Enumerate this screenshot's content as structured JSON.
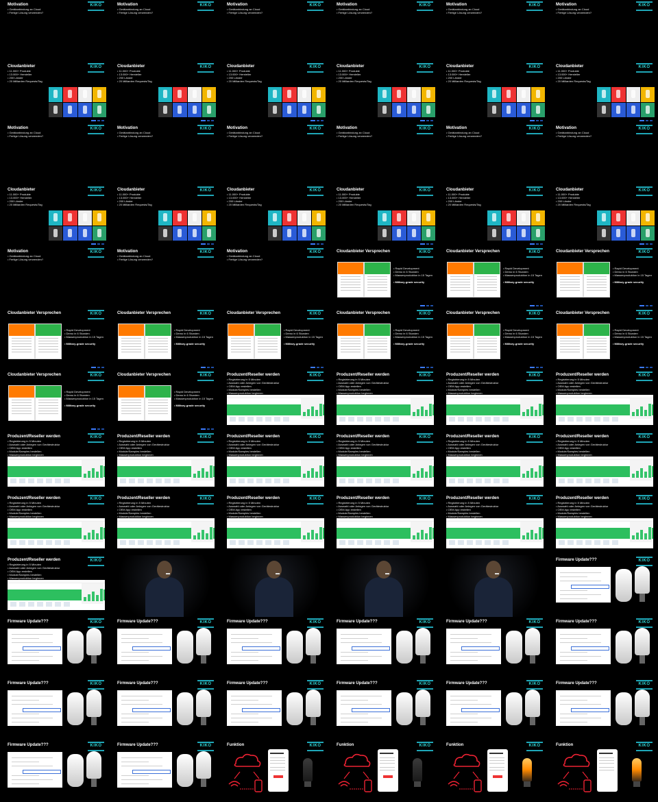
{
  "brand": {
    "logo_text": "KIKO",
    "accent": "#1fa7b8"
  },
  "slides": {
    "motivation": {
      "title": "Motivation",
      "bullets": [
        "• Gerätanbindung an Cloud",
        "• Fertige Lösung verwenden?"
      ]
    },
    "cloudanbieter": {
      "title": "Cloudanbieter",
      "bullets": [
        "• 11.000+ Produkte",
        "• 13.000+ Hersteller",
        "• 200 Länder",
        "• 20 Milliarden Requests/Tag"
      ]
    },
    "versprechen": {
      "title": "Cloudanbieter Versprechen",
      "bullets": [
        "• Rapid Development",
        "• Demo in 6 Stunden",
        "• Massenproduktion in 15 Tagen"
      ],
      "bold": "• Military-grade security"
    },
    "produzent": {
      "title": "Produzent/Reseller werden",
      "bullets": [
        "• Registrierung in 5 Minuten",
        "• Auswahl oder Anlegen von Gerätestruktur",
        "• OEM App erstellen",
        "• Module/Samples bestellen",
        "• Massenproduktion beginnen"
      ]
    },
    "firmware": {
      "title": "Firmware Update???"
    },
    "funktion": {
      "title": "Funktion"
    }
  },
  "layout_sequence": [
    "motivation",
    "motivation",
    "motivation",
    "motivation",
    "motivation",
    "motivation",
    "cloudanbieter",
    "cloudanbieter",
    "cloudanbieter",
    "cloudanbieter",
    "cloudanbieter",
    "cloudanbieter",
    "motivation",
    "motivation",
    "motivation",
    "motivation",
    "motivation",
    "motivation",
    "cloudanbieter",
    "cloudanbieter",
    "cloudanbieter",
    "cloudanbieter",
    "cloudanbieter",
    "cloudanbieter",
    "motivation",
    "motivation",
    "motivation",
    "versprechen",
    "versprechen",
    "versprechen",
    "versprechen",
    "versprechen",
    "versprechen",
    "versprechen",
    "versprechen",
    "versprechen",
    "versprechen",
    "versprechen",
    "produzent",
    "produzent",
    "produzent",
    "produzent",
    "produzent",
    "produzent",
    "produzent",
    "produzent",
    "produzent",
    "produzent",
    "produzent",
    "produzent",
    "produzent",
    "produzent",
    "produzent",
    "produzent",
    "produzent",
    "speaker",
    "speaker",
    "speaker",
    "speaker",
    "firmware",
    "firmware",
    "firmware",
    "firmware",
    "firmware",
    "firmware",
    "firmware",
    "firmware",
    "firmware",
    "firmware",
    "firmware",
    "firmware",
    "firmware",
    "firmware",
    "firmware",
    "funktion",
    "funktion",
    "funktion",
    "funktion"
  ]
}
